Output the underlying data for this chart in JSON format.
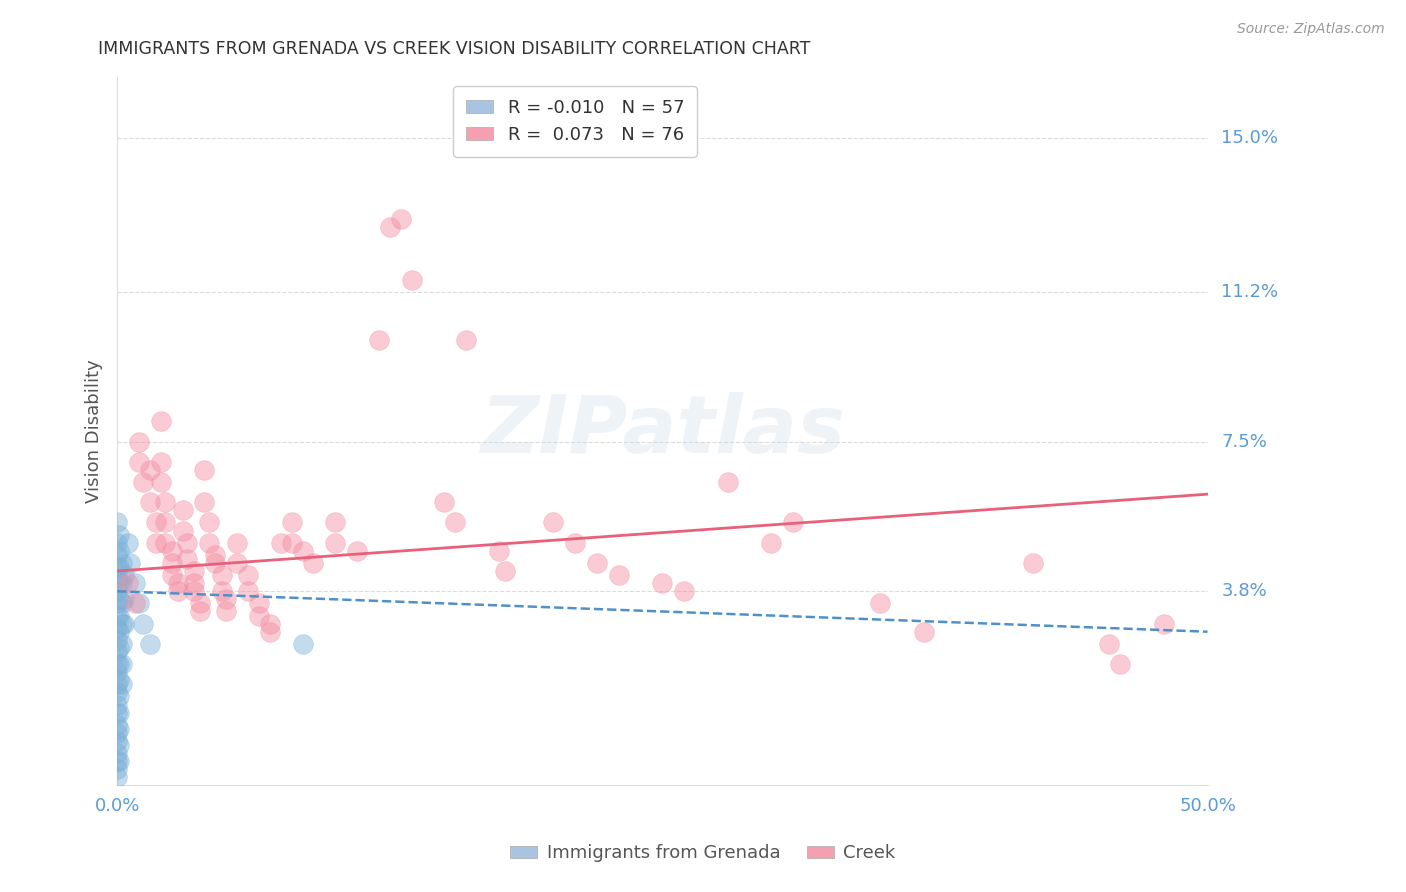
{
  "title": "IMMIGRANTS FROM GRENADA VS CREEK VISION DISABILITY CORRELATION CHART",
  "source": "Source: ZipAtlas.com",
  "ylabel": "Vision Disability",
  "ytick_labels": [
    "15.0%",
    "11.2%",
    "7.5%",
    "3.8%"
  ],
  "ytick_values": [
    0.15,
    0.112,
    0.075,
    0.038
  ],
  "xlim": [
    0.0,
    0.5
  ],
  "ylim": [
    -0.01,
    0.165
  ],
  "watermark": "ZIPatlas",
  "blue_scatter": [
    [
      0.0,
      0.055
    ],
    [
      0.0,
      0.05
    ],
    [
      0.0,
      0.047
    ],
    [
      0.0,
      0.044
    ],
    [
      0.0,
      0.041
    ],
    [
      0.0,
      0.038
    ],
    [
      0.0,
      0.035
    ],
    [
      0.0,
      0.032
    ],
    [
      0.0,
      0.029
    ],
    [
      0.0,
      0.026
    ],
    [
      0.0,
      0.023
    ],
    [
      0.0,
      0.02
    ],
    [
      0.0,
      0.018
    ],
    [
      0.0,
      0.015
    ],
    [
      0.0,
      0.013
    ],
    [
      0.0,
      0.01
    ],
    [
      0.0,
      0.008
    ],
    [
      0.0,
      0.005
    ],
    [
      0.0,
      0.003
    ],
    [
      0.0,
      0.001
    ],
    [
      0.0,
      -0.002
    ],
    [
      0.0,
      -0.004
    ],
    [
      0.0,
      -0.006
    ],
    [
      0.0,
      -0.008
    ],
    [
      0.001,
      0.052
    ],
    [
      0.001,
      0.048
    ],
    [
      0.001,
      0.044
    ],
    [
      0.001,
      0.04
    ],
    [
      0.001,
      0.036
    ],
    [
      0.001,
      0.032
    ],
    [
      0.001,
      0.028
    ],
    [
      0.001,
      0.024
    ],
    [
      0.001,
      0.02
    ],
    [
      0.001,
      0.016
    ],
    [
      0.001,
      0.012
    ],
    [
      0.001,
      0.008
    ],
    [
      0.001,
      0.004
    ],
    [
      0.001,
      0.0
    ],
    [
      0.001,
      -0.004
    ],
    [
      0.002,
      0.045
    ],
    [
      0.002,
      0.04
    ],
    [
      0.002,
      0.035
    ],
    [
      0.002,
      0.03
    ],
    [
      0.002,
      0.025
    ],
    [
      0.002,
      0.02
    ],
    [
      0.002,
      0.015
    ],
    [
      0.003,
      0.042
    ],
    [
      0.003,
      0.036
    ],
    [
      0.003,
      0.03
    ],
    [
      0.005,
      0.05
    ],
    [
      0.006,
      0.045
    ],
    [
      0.008,
      0.04
    ],
    [
      0.01,
      0.035
    ],
    [
      0.012,
      0.03
    ],
    [
      0.015,
      0.025
    ],
    [
      0.085,
      0.025
    ]
  ],
  "pink_scatter": [
    [
      0.005,
      0.04
    ],
    [
      0.008,
      0.035
    ],
    [
      0.01,
      0.075
    ],
    [
      0.01,
      0.07
    ],
    [
      0.012,
      0.065
    ],
    [
      0.015,
      0.068
    ],
    [
      0.015,
      0.06
    ],
    [
      0.018,
      0.055
    ],
    [
      0.018,
      0.05
    ],
    [
      0.02,
      0.08
    ],
    [
      0.02,
      0.07
    ],
    [
      0.02,
      0.065
    ],
    [
      0.022,
      0.06
    ],
    [
      0.022,
      0.055
    ],
    [
      0.022,
      0.05
    ],
    [
      0.025,
      0.048
    ],
    [
      0.025,
      0.045
    ],
    [
      0.025,
      0.042
    ],
    [
      0.028,
      0.04
    ],
    [
      0.028,
      0.038
    ],
    [
      0.03,
      0.058
    ],
    [
      0.03,
      0.053
    ],
    [
      0.032,
      0.05
    ],
    [
      0.032,
      0.046
    ],
    [
      0.035,
      0.043
    ],
    [
      0.035,
      0.04
    ],
    [
      0.035,
      0.038
    ],
    [
      0.038,
      0.035
    ],
    [
      0.038,
      0.033
    ],
    [
      0.04,
      0.068
    ],
    [
      0.04,
      0.06
    ],
    [
      0.042,
      0.055
    ],
    [
      0.042,
      0.05
    ],
    [
      0.045,
      0.047
    ],
    [
      0.045,
      0.045
    ],
    [
      0.048,
      0.042
    ],
    [
      0.048,
      0.038
    ],
    [
      0.05,
      0.036
    ],
    [
      0.05,
      0.033
    ],
    [
      0.055,
      0.05
    ],
    [
      0.055,
      0.045
    ],
    [
      0.06,
      0.042
    ],
    [
      0.06,
      0.038
    ],
    [
      0.065,
      0.035
    ],
    [
      0.065,
      0.032
    ],
    [
      0.07,
      0.03
    ],
    [
      0.07,
      0.028
    ],
    [
      0.075,
      0.05
    ],
    [
      0.08,
      0.055
    ],
    [
      0.08,
      0.05
    ],
    [
      0.085,
      0.048
    ],
    [
      0.09,
      0.045
    ],
    [
      0.1,
      0.055
    ],
    [
      0.1,
      0.05
    ],
    [
      0.11,
      0.048
    ],
    [
      0.12,
      0.1
    ],
    [
      0.125,
      0.128
    ],
    [
      0.13,
      0.13
    ],
    [
      0.135,
      0.115
    ],
    [
      0.15,
      0.06
    ],
    [
      0.155,
      0.055
    ],
    [
      0.16,
      0.1
    ],
    [
      0.175,
      0.048
    ],
    [
      0.178,
      0.043
    ],
    [
      0.2,
      0.055
    ],
    [
      0.21,
      0.05
    ],
    [
      0.22,
      0.045
    ],
    [
      0.23,
      0.042
    ],
    [
      0.25,
      0.04
    ],
    [
      0.26,
      0.038
    ],
    [
      0.28,
      0.065
    ],
    [
      0.3,
      0.05
    ],
    [
      0.31,
      0.055
    ],
    [
      0.35,
      0.035
    ],
    [
      0.37,
      0.028
    ],
    [
      0.42,
      0.045
    ],
    [
      0.455,
      0.025
    ],
    [
      0.46,
      0.02
    ],
    [
      0.48,
      0.03
    ]
  ],
  "blue_line_x": [
    0.0,
    0.5
  ],
  "blue_line_y": [
    0.038,
    0.028
  ],
  "pink_line_x": [
    0.0,
    0.5
  ],
  "pink_line_y": [
    0.043,
    0.062
  ],
  "scatter_size": 200,
  "scatter_alpha": 0.45,
  "blue_scatter_color": "#7ab0d8",
  "pink_scatter_color": "#f48ca0",
  "blue_line_color": "#5090c8",
  "pink_line_color": "#e8607a",
  "grid_color": "#cccccc",
  "background_color": "#ffffff",
  "title_color": "#333333",
  "tick_label_color": "#5b9bd5",
  "legend_blue_color": "#a8c4e0",
  "legend_pink_color": "#f4a0b0",
  "legend_r1": "R = -0.010",
  "legend_n1": "N = 57",
  "legend_r2": "R =  0.073",
  "legend_n2": "N = 76"
}
